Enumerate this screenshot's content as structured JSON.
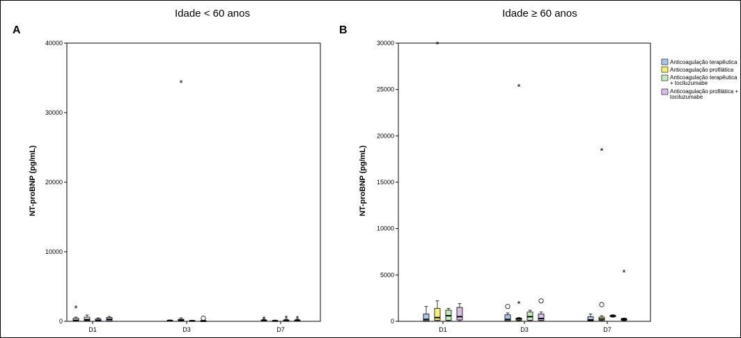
{
  "chart_data": [
    {
      "type": "box",
      "panel_label": "A",
      "title": "Idade < 60 anos",
      "ylabel": "NT-proBNP (pg/mL)",
      "xlabel": "",
      "categories": [
        "D1",
        "D3",
        "D7"
      ],
      "ylim": [
        0,
        40000
      ],
      "yticks": [
        0,
        10000,
        20000,
        30000,
        40000
      ],
      "grid": false,
      "series": [
        {
          "name": "Anticoagulação terapêutica",
          "boxes": [
            {
              "q1": 80,
              "median": 150,
              "q3": 450,
              "low": 20,
              "high": 600,
              "extremes": [
                1900
              ]
            },
            {
              "q1": 40,
              "median": 80,
              "q3": 150,
              "low": 10,
              "high": 200
            },
            {
              "q1": 50,
              "median": 100,
              "q3": 200,
              "low": 20,
              "high": 300,
              "extremes": [
                350
              ]
            }
          ]
        },
        {
          "name": "Anticoagulação profilática",
          "boxes": [
            {
              "q1": 100,
              "median": 250,
              "q3": 600,
              "low": 20,
              "high": 900
            },
            {
              "q1": 50,
              "median": 150,
              "q3": 300,
              "low": 20,
              "high": 500,
              "extremes": [
                34300
              ]
            },
            {
              "q1": 30,
              "median": 60,
              "q3": 120,
              "low": 10,
              "high": 180
            }
          ]
        },
        {
          "name": "Anticoagulação terapêutica + tociluzumabe",
          "boxes": [
            {
              "q1": 50,
              "median": 150,
              "q3": 350,
              "low": 20,
              "high": 500
            },
            {
              "q1": 30,
              "median": 60,
              "q3": 120,
              "low": 10,
              "high": 150
            },
            {
              "q1": 40,
              "median": 100,
              "q3": 200,
              "low": 10,
              "high": 300,
              "extremes": [
                450
              ]
            }
          ]
        },
        {
          "name": "Anticoagulação profilática + tociluzumabe",
          "boxes": [
            {
              "q1": 100,
              "median": 300,
              "q3": 550,
              "low": 30,
              "high": 700
            },
            {
              "q1": 30,
              "median": 60,
              "q3": 100,
              "low": 10,
              "high": 150,
              "outliers": [
                450
              ]
            },
            {
              "q1": 50,
              "median": 100,
              "q3": 200,
              "low": 10,
              "high": 300,
              "extremes": [
                400
              ]
            }
          ]
        }
      ]
    },
    {
      "type": "box",
      "panel_label": "B",
      "title": "Idade ≥ 60 anos",
      "ylabel": "NT-proBNP (pg/mL)",
      "xlabel": "",
      "categories": [
        "D1",
        "D3",
        "D7"
      ],
      "ylim": [
        0,
        30000
      ],
      "yticks": [
        0,
        5000,
        10000,
        15000,
        20000,
        25000,
        30000
      ],
      "grid": false,
      "legend": "right",
      "series": [
        {
          "name": "Anticoagulação terapêutica",
          "color": "#a9c6e8",
          "boxes": [
            {
              "q1": 50,
              "median": 200,
              "q3": 800,
              "low": 10,
              "high": 1600
            },
            {
              "q1": 50,
              "median": 200,
              "q3": 700,
              "low": 10,
              "high": 900,
              "outliers": [
                1600
              ]
            },
            {
              "q1": 50,
              "median": 150,
              "q3": 500,
              "low": 10,
              "high": 800
            }
          ]
        },
        {
          "name": "Anticoagulação profilática",
          "color": "#f3ef7a",
          "boxes": [
            {
              "q1": 100,
              "median": 400,
              "q3": 1400,
              "low": 20,
              "high": 2200,
              "extremes": [
                29900
              ]
            },
            {
              "q1": 100,
              "median": 250,
              "q3": 350,
              "low": 50,
              "high": 400,
              "extremes": [
                1900,
                25300
              ]
            },
            {
              "q1": 100,
              "median": 250,
              "q3": 450,
              "low": 30,
              "high": 600,
              "outliers": [
                1800
              ],
              "extremes": [
                18400
              ]
            }
          ]
        },
        {
          "name": "Anticoagulação terapêutica + tociluzumabe",
          "color": "#c2ecbe",
          "boxes": [
            {
              "q1": 100,
              "median": 600,
              "q3": 1200,
              "low": 30,
              "high": 1400
            },
            {
              "q1": 100,
              "median": 500,
              "q3": 1000,
              "low": 30,
              "high": 1200
            },
            {
              "q1": 500,
              "median": 600,
              "q3": 650,
              "low": 450,
              "high": 700
            }
          ]
        },
        {
          "name": "Anticoagulação profilática + tociluzumabe",
          "color": "#d7bde8",
          "boxes": [
            {
              "q1": 150,
              "median": 500,
              "q3": 1500,
              "low": 30,
              "high": 1900
            },
            {
              "q1": 100,
              "median": 300,
              "q3": 800,
              "low": 20,
              "high": 1000,
              "outliers": [
                2200
              ]
            },
            {
              "q1": 100,
              "median": 200,
              "q3": 300,
              "low": 50,
              "high": 350,
              "extremes": [
                5300
              ]
            }
          ]
        }
      ]
    }
  ],
  "legend_entries": [
    {
      "line1": "Anticoagulação terapêutica",
      "line2": "",
      "color": "#a9c6e8"
    },
    {
      "line1": "Anticoagulação profilática",
      "line2": "",
      "color": "#f3ef7a"
    },
    {
      "line1": "Anticoagulação terapêutica",
      "line2": "+ tociluzumabe",
      "color": "#c2ecbe"
    },
    {
      "line1": "Anticoagulação profilática +",
      "line2": "tociluzumabe",
      "color": "#d7bde8"
    }
  ],
  "colors": {
    "panel_a_box": "#e8eaf0",
    "axis": "#000000"
  }
}
